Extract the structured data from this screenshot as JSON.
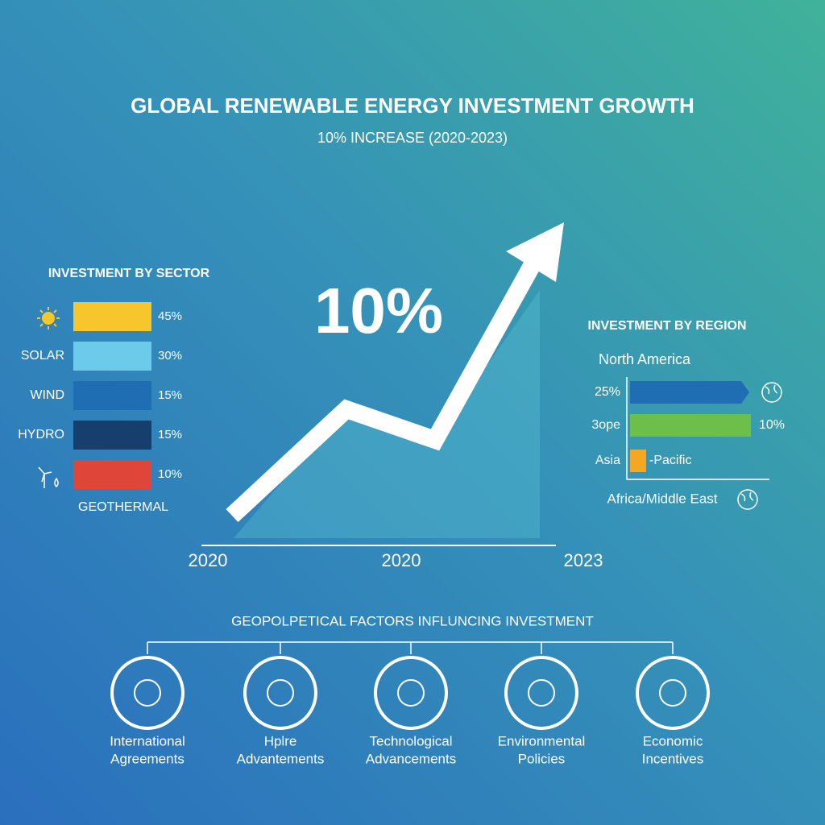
{
  "title": "GLOBAL RENEWABLE ENERGY INVESTMENT GROWTH",
  "subtitle": "10% INCREASE (2020-2023)",
  "growth": {
    "headline": "10%",
    "axis_labels": [
      "2020",
      "2020",
      "2023"
    ]
  },
  "sector": {
    "title": "INVESTMENT BY SECTOR",
    "rows": [
      {
        "value": "45%",
        "color": "#f6c62c"
      },
      {
        "label": "SOLAR",
        "value": "30%",
        "color": "#6ccbea"
      },
      {
        "label": "WIND",
        "value": "15%",
        "color": "#1f6db3"
      },
      {
        "label": "HYDRO",
        "value": "15%",
        "color": "#173f6e"
      },
      {
        "value": "10%",
        "color": "#e0453a"
      }
    ],
    "footer": "GEOTHERMAL"
  },
  "region": {
    "title": "INVESTMENT BY REGION",
    "header": "North America",
    "rows": [
      {
        "label": "25%",
        "color": "#1f6db3"
      },
      {
        "label": "3ope",
        "color": "#6cc04a",
        "right": "10%"
      },
      {
        "label": "Asia",
        "color": "#f5a623",
        "right": "-Pacific"
      }
    ],
    "footer": "Africa/Middle East"
  },
  "factors": {
    "title": "GEOPOLPETICAL FACTORS INFLUNCING INVESTMENT",
    "items": [
      {
        "lines": [
          "International",
          "Agreements"
        ]
      },
      {
        "lines": [
          "Hplre",
          "Advantements"
        ]
      },
      {
        "lines": [
          "Technological",
          "Advancements"
        ]
      },
      {
        "lines": [
          "Environmental",
          "Policies"
        ]
      },
      {
        "lines": [
          "Economic",
          "Incentives"
        ]
      }
    ]
  }
}
